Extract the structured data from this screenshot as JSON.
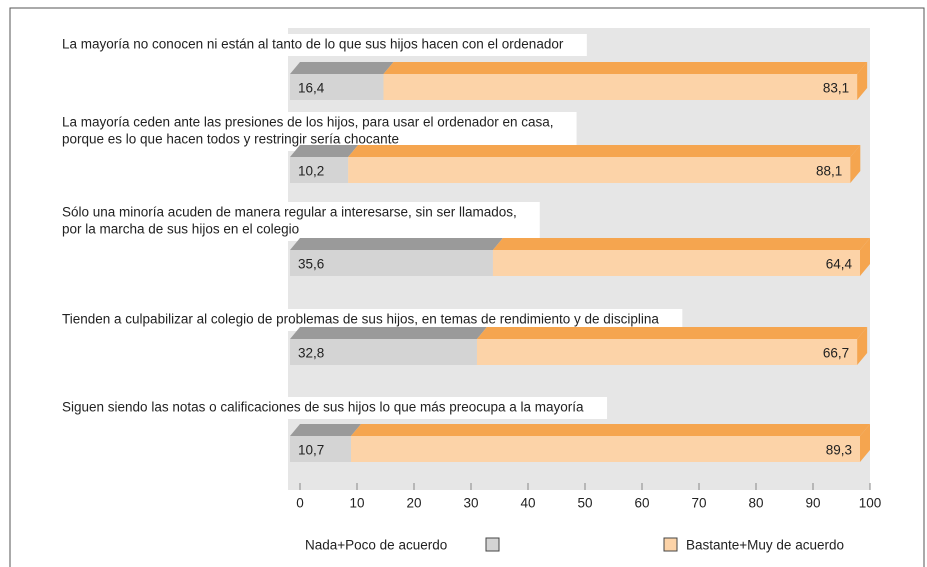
{
  "chart_data": {
    "type": "bar3d_stacked_horizontal",
    "categories": [
      [
        "La mayoría no conocen ni están al tanto de lo que sus hijos hacen con el ordenador"
      ],
      [
        "La mayoría ceden ante las presiones de los hijos, para usar el ordenador en casa,",
        "porque es lo que hacen todos y restringir sería chocante"
      ],
      [
        "Sólo una minoría acuden de manera regular a interesarse, sin ser llamados,",
        "por la marcha de sus hijos en el colegio"
      ],
      [
        "Tienden a culpabilizar al colegio de problemas de sus hijos, en temas de rendimiento y de disciplina"
      ],
      [
        "Siguen siendo las notas o calificaciones de sus hijos lo que más preocupa a la mayoría"
      ]
    ],
    "series": [
      {
        "name": "Nada+Poco de acuerdo",
        "color": "#d4d4d4",
        "top_color": "#9a9a9a",
        "values": [
          16.4,
          10.2,
          35.6,
          32.8,
          10.7
        ],
        "value_labels": [
          "16,4",
          "10,2",
          "35,6",
          "32,8",
          "10,7"
        ]
      },
      {
        "name": "Bastante+Muy de acuerdo",
        "color": "#fcd3a8",
        "top_color": "#f5a54f",
        "values": [
          83.1,
          88.1,
          64.4,
          66.7,
          89.3
        ],
        "value_labels": [
          "83,1",
          "88,1",
          "64,4",
          "66,7",
          "89,3"
        ]
      }
    ],
    "xlim": [
      0,
      100
    ],
    "xticks": [
      0,
      10,
      20,
      30,
      40,
      50,
      60,
      70,
      80,
      90,
      100
    ]
  }
}
